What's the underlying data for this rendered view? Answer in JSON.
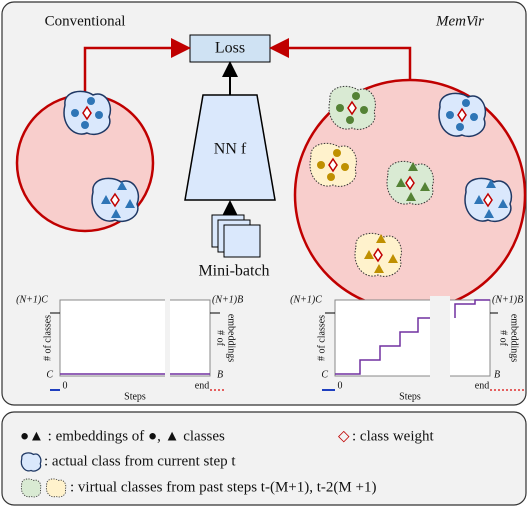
{
  "header": {
    "left_title": "Conventional",
    "right_title": "MemVir"
  },
  "nodes": {
    "loss": "Loss",
    "network": "NN f",
    "minibatch": "Mini-batch"
  },
  "plots": [
    {
      "y_top": "(N+1)C",
      "y_bottom": "C",
      "y2_top": "(N+1)B",
      "y2_bottom": "B",
      "x_start": "0",
      "x_end": "end",
      "x_label": "Steps",
      "y_label": "# of classes",
      "y2_label": [
        "# of",
        "embeddings"
      ]
    },
    {
      "y_top": "(N+1)C",
      "y_bottom": "C",
      "y2_top": "(N+1)B",
      "y2_bottom": "B",
      "x_start": "0",
      "x_end": "end",
      "x_label": "Steps",
      "y_label": "# of classes",
      "y2_label": [
        "# of",
        "embeddings"
      ]
    }
  ],
  "legend": {
    "embeddings": "●▲ : embeddings of ●, ▲ classes",
    "class_weight_symbol": "◇",
    "class_weight": ": class weight",
    "actual_class": ": actual class from current step t",
    "virtual_classes": ": virtual classes from past steps t-(M+1), t-2(M +1)"
  }
}
